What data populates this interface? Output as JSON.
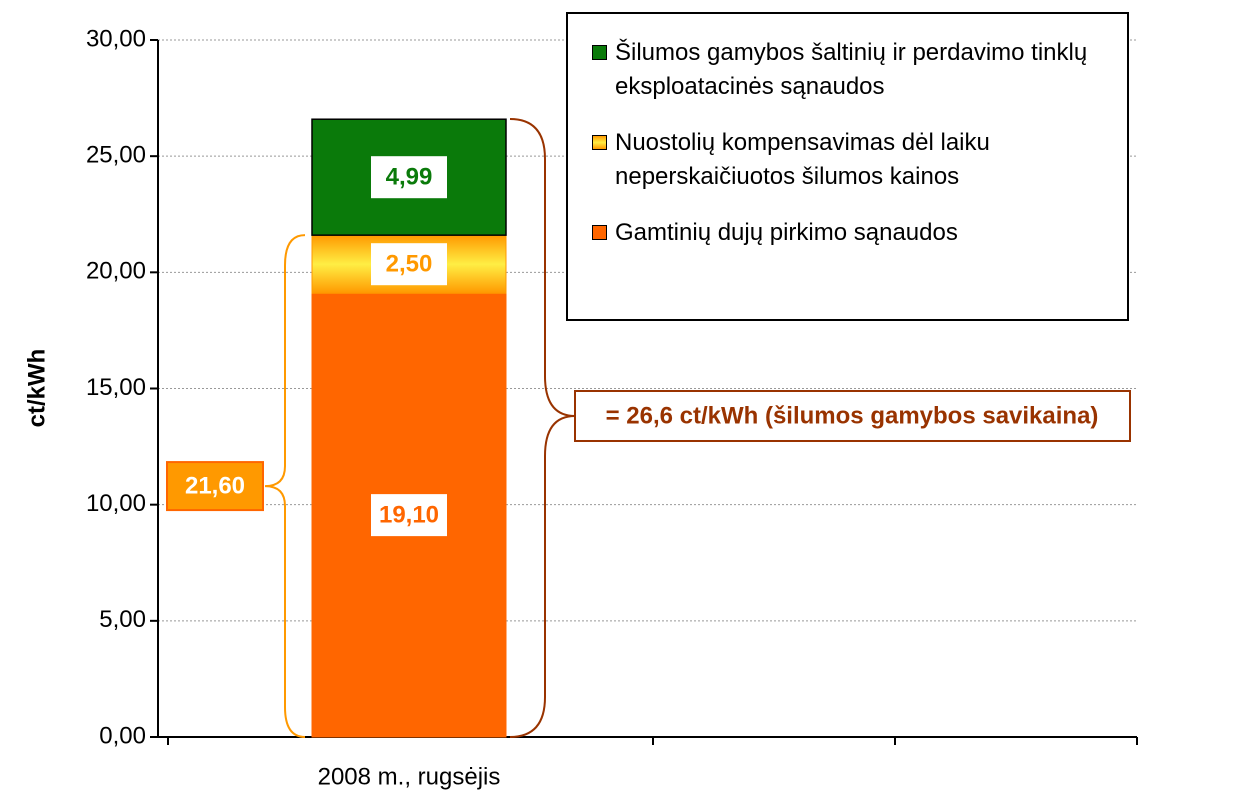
{
  "chart_data": {
    "type": "stacked_bar",
    "y_label": "ct/kWh",
    "categories": [
      "2008 m., rugsėjis"
    ],
    "series": [
      {
        "name": "Gamtinių dujų pirkimo sąnaudos",
        "color": "#ff6600",
        "values": [
          19.1
        ],
        "value_labels": [
          "19,10"
        ]
      },
      {
        "name": "Nuostolių kompensavimas dėl laiku neperskaičiuotos šilumos kainos",
        "color": "#ff9900",
        "values": [
          2.5
        ],
        "value_labels": [
          "2,50"
        ]
      },
      {
        "name": "Šilumos gamybos šaltinių ir perdavimo tinklų eksploatacinės sąnaudos",
        "color": "#0a7a0a",
        "values": [
          4.99
        ],
        "value_labels": [
          "4,99"
        ]
      }
    ],
    "annotations": [
      {
        "text": "21,60",
        "value": 21.6
      },
      {
        "text": "= 26,6 ct/kWh (šilumos gamybos savikaina)",
        "value": 26.6
      }
    ],
    "ylim": [
      0,
      30
    ],
    "yticks": [
      {
        "value": 0,
        "label": "0,00"
      },
      {
        "value": 5,
        "label": "5,00"
      },
      {
        "value": 10,
        "label": "10,00"
      },
      {
        "value": 15,
        "label": "15,00"
      },
      {
        "value": 20,
        "label": "20,00"
      },
      {
        "value": 25,
        "label": "25,00"
      },
      {
        "value": 30,
        "label": "30,00"
      }
    ],
    "grid": true
  }
}
